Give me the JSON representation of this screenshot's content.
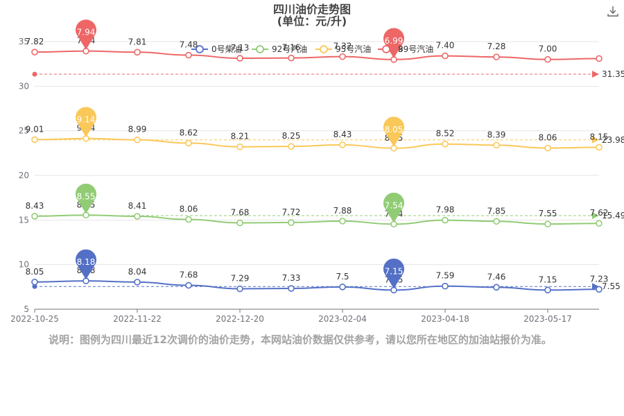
{
  "title": "四川油价走势图",
  "subtitle": "(单位：元/升)",
  "note": "说明：图例为四川最近12次调价的油价走势，本网站油价数据仅供参考，请以您所在地区的加油站报价为准。",
  "download_icon": "download-icon",
  "chart_data": {
    "type": "line",
    "ylim": [
      5,
      35
    ],
    "y_ticks": [
      5,
      10,
      15,
      20,
      25,
      30,
      35
    ],
    "x_labels": [
      {
        "text": "2022-10-25",
        "index": 0
      },
      {
        "text": "2022-11-22",
        "index": 2
      },
      {
        "text": "2022-12-20",
        "index": 4
      },
      {
        "text": "2023-02-04",
        "index": 6
      },
      {
        "text": "2023-04-18",
        "index": 8
      },
      {
        "text": "2023-05-17",
        "index": 10
      }
    ],
    "n_points": 12,
    "legend_position": "top-center",
    "grid": true,
    "series": [
      {
        "name": "0号柴油",
        "color": "#5470c6",
        "offset": 0,
        "prices": [
          8.05,
          8.18,
          8.04,
          7.68,
          7.29,
          7.33,
          7.5,
          7.15,
          7.59,
          7.46,
          7.15,
          7.23
        ],
        "max_pin": {
          "index": 1,
          "value": "8.18"
        },
        "min_pin": {
          "index": 7,
          "value": "7.15"
        },
        "avg_label": "7.55",
        "avg_plot": 7.55
      },
      {
        "name": "92号汽油",
        "color": "#91cc75",
        "offset": 7,
        "prices": [
          8.43,
          8.55,
          8.41,
          8.06,
          7.68,
          7.72,
          7.88,
          7.54,
          7.98,
          7.85,
          7.55,
          7.62
        ],
        "max_pin": {
          "index": 1,
          "value": "8.55"
        },
        "min_pin": {
          "index": 7,
          "value": "7.54"
        },
        "avg_label": "15.49",
        "avg_plot": 15.49
      },
      {
        "name": "95号汽油",
        "color": "#fac858",
        "offset": 15,
        "prices": [
          9.01,
          9.14,
          8.99,
          8.62,
          8.21,
          8.25,
          8.43,
          8.05,
          8.52,
          8.39,
          8.06,
          8.15
        ],
        "max_pin": {
          "index": 1,
          "value": "9.14"
        },
        "min_pin": {
          "index": 7,
          "value": "8.05"
        },
        "avg_label": "23.98",
        "avg_plot": 23.98
      },
      {
        "name": "89号汽油",
        "color": "#ee6666",
        "offset": 26,
        "prices": [
          7.82,
          7.94,
          7.81,
          7.48,
          7.13,
          7.16,
          7.32,
          6.99,
          7.4,
          7.28,
          7.0,
          7.1
        ],
        "visible_labels": [
          "7.82",
          "7.94",
          "7.81",
          "7.48",
          "7.13",
          "7.16",
          "7.32",
          "6.99",
          "7.40",
          "7.28",
          "7.00",
          ""
        ],
        "max_pin": {
          "index": 1,
          "value": "7.94"
        },
        "min_pin": {
          "index": 7,
          "value": "6.99"
        },
        "avg_label": "31.35",
        "avg_plot": 31.35
      }
    ]
  }
}
